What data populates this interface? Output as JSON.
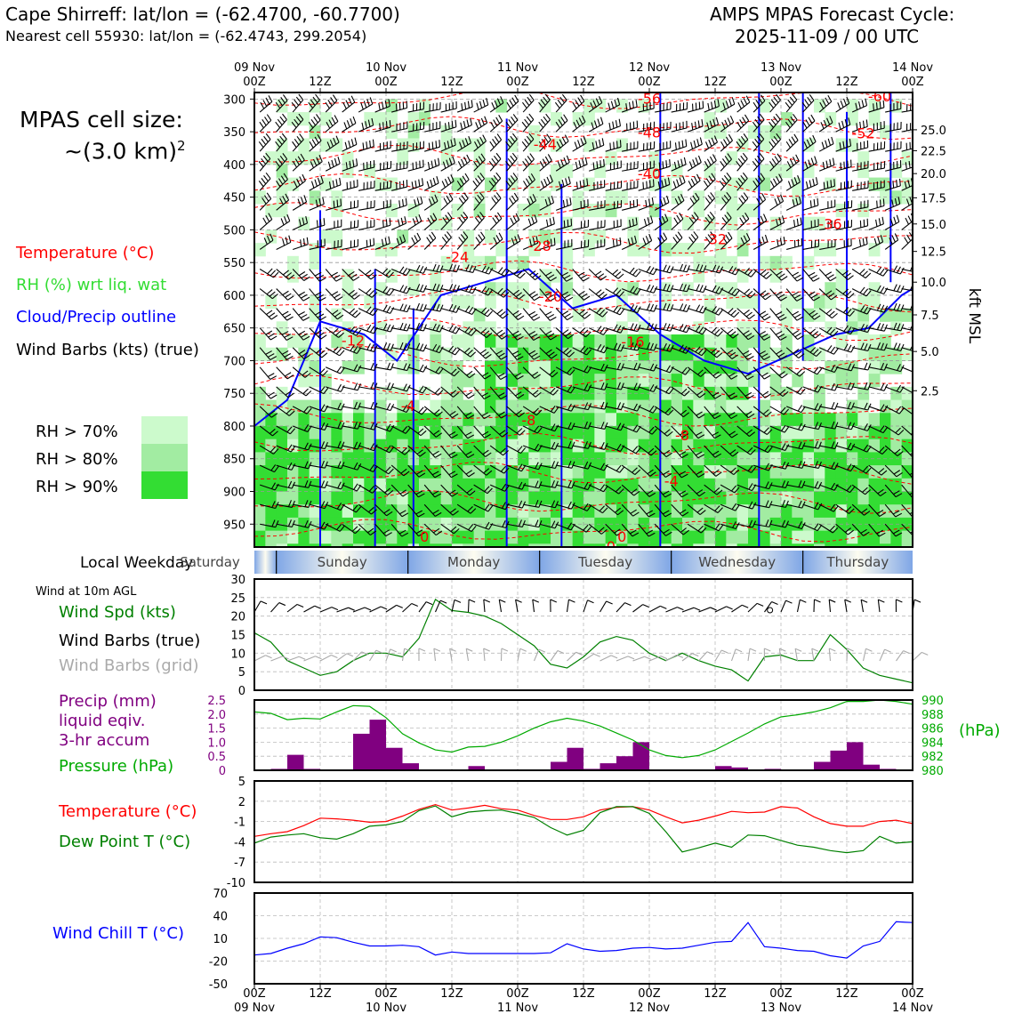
{
  "header": {
    "title_left": "Cape Shirreff: lat/lon = (-62.4700, -60.7700)",
    "subtitle_left": "Nearest cell 55930: lat/lon = (-62.4743, 299.2054)",
    "title_right_1": "AMPS MPAS Forecast Cycle:",
    "title_right_2": "2025-11-09 / 00 UTC"
  },
  "cell_size": {
    "line1": "MPAS cell size:",
    "line2": "~(3.0 km)",
    "sup": "2"
  },
  "legend": {
    "temperature": {
      "label": "Temperature (°C)",
      "color": "#ff0000"
    },
    "rh": {
      "label": "RH (%) wrt liq. wat",
      "color": "#33dd33"
    },
    "cloud": {
      "label": "Cloud/Precip outline",
      "color": "#0000ff"
    },
    "wind": {
      "label": "Wind Barbs (kts) (true)",
      "color": "#000000"
    }
  },
  "rh_key": [
    {
      "label": "RH > 70%",
      "color": "#ccfacc"
    },
    {
      "label": "RH > 80%",
      "color": "#a2eca2"
    },
    {
      "label": "RH > 90%",
      "color": "#33dd33"
    }
  ],
  "time_axis": {
    "ticks": [
      {
        "t": 0,
        "hour": "00Z",
        "day": "09 Nov"
      },
      {
        "t": 12,
        "hour": "12Z",
        "day": ""
      },
      {
        "t": 24,
        "hour": "00Z",
        "day": "10 Nov"
      },
      {
        "t": 36,
        "hour": "12Z",
        "day": ""
      },
      {
        "t": 48,
        "hour": "00Z",
        "day": "11 Nov"
      },
      {
        "t": 60,
        "hour": "12Z",
        "day": ""
      },
      {
        "t": 72,
        "hour": "00Z",
        "day": "12 Nov"
      },
      {
        "t": 84,
        "hour": "12Z",
        "day": ""
      },
      {
        "t": 96,
        "hour": "00Z",
        "day": "13 Nov"
      },
      {
        "t": 108,
        "hour": "12Z",
        "day": ""
      },
      {
        "t": 120,
        "hour": "00Z",
        "day": "14 Nov"
      }
    ]
  },
  "weekday_strip": {
    "label": "Local Weekday",
    "days": [
      {
        "name": "Saturday",
        "t0": -4,
        "t1": 4
      },
      {
        "name": "Sunday",
        "t0": 4,
        "t1": 28
      },
      {
        "name": "Monday",
        "t0": 28,
        "t1": 52
      },
      {
        "name": "Tuesday",
        "t0": 52,
        "t1": 76
      },
      {
        "name": "Wednesday",
        "t0": 76,
        "t1": 100
      },
      {
        "name": "Thursday",
        "t0": 100,
        "t1": 124
      }
    ]
  },
  "chart_data": [
    {
      "type": "heatmap",
      "name": "cross_section",
      "y_left_label": "",
      "pressure_ticks": [
        300,
        350,
        400,
        450,
        500,
        550,
        600,
        650,
        700,
        750,
        800,
        850,
        900,
        950
      ],
      "ylim_hpa": [
        290,
        985
      ],
      "right_axis_label": "kft MSL",
      "kft_ticks": [
        {
          "v": "25.0",
          "p": 347
        },
        {
          "v": "22.5",
          "p": 379
        },
        {
          "v": "20.0",
          "p": 414
        },
        {
          "v": "17.5",
          "p": 451
        },
        {
          "v": "15.0",
          "p": 491
        },
        {
          "v": "12.5",
          "p": 533
        },
        {
          "v": "10.0",
          "p": 580
        },
        {
          "v": "7.5",
          "p": 630
        },
        {
          "v": "5.0",
          "p": 686
        },
        {
          "v": "2.5",
          "p": 746
        }
      ],
      "temperature_contour_labels": [
        {
          "text": "-56",
          "t": 72,
          "p": 300
        },
        {
          "text": "-60",
          "t": 114,
          "p": 297
        },
        {
          "text": "-52",
          "t": 111,
          "p": 353
        },
        {
          "text": "-48",
          "t": 72,
          "p": 352
        },
        {
          "text": "-44",
          "t": 53,
          "p": 370
        },
        {
          "text": "-40",
          "t": 72,
          "p": 415
        },
        {
          "text": "-36",
          "t": 105,
          "p": 492
        },
        {
          "text": "-32",
          "t": 84,
          "p": 515
        },
        {
          "text": "-28",
          "t": 52,
          "p": 525
        },
        {
          "text": "-24",
          "t": 37,
          "p": 542
        },
        {
          "text": "-20",
          "t": 54,
          "p": 603
        },
        {
          "text": "-16",
          "t": 69,
          "p": 672
        },
        {
          "text": "-12",
          "t": 18,
          "p": 670
        },
        {
          "text": "-8",
          "t": 50,
          "p": 792
        },
        {
          "text": "-8",
          "t": 78,
          "p": 815
        },
        {
          "text": "-4",
          "t": 28,
          "p": 770
        },
        {
          "text": "-4",
          "t": 76,
          "p": 885
        },
        {
          "text": "0",
          "t": 31,
          "p": 970
        },
        {
          "text": "0",
          "t": 67,
          "p": 970
        },
        {
          "text": "0",
          "t": 65,
          "p": 985
        }
      ]
    },
    {
      "type": "line",
      "name": "wind_10m",
      "title": "Wind at 10m AGL",
      "ylabel_1": "Wind Spd (kts)",
      "ylabel_2": "Wind Barbs (true)",
      "ylabel_3": "Wind Barbs (grid)",
      "ylim": [
        0,
        30
      ],
      "yticks": [
        0,
        5,
        10,
        15,
        20,
        25,
        30
      ],
      "x": [
        0,
        3,
        6,
        9,
        12,
        15,
        18,
        21,
        24,
        27,
        30,
        33,
        36,
        39,
        42,
        45,
        48,
        51,
        54,
        57,
        60,
        63,
        66,
        69,
        72,
        75,
        78,
        81,
        84,
        87,
        90,
        93,
        96,
        99,
        102,
        105,
        108,
        111,
        114,
        117,
        120
      ],
      "series": [
        {
          "color": "#008000",
          "values": [
            15.5,
            13,
            8,
            6,
            4,
            5,
            8,
            10,
            10,
            9,
            14,
            24.5,
            21.5,
            21,
            20,
            18,
            15,
            12,
            7,
            6,
            9,
            13,
            14.5,
            13.5,
            10,
            8,
            10,
            8,
            6.5,
            5.5,
            2.5,
            9,
            9.5,
            8,
            8,
            15,
            11,
            6,
            4,
            3,
            2
          ]
        }
      ],
      "barb_note": "o"
    },
    {
      "type": "bar",
      "name": "precip_pressure",
      "ylabel_1": "Precip (mm)",
      "ylabel_2": "liquid eqiv.",
      "ylabel_3": "3-hr accum",
      "ylabel_4": "Pressure (hPa)",
      "right_axis_label": "(hPa)",
      "ylim_precip": [
        0,
        2.5
      ],
      "yticks_precip": [
        "0",
        "0.5",
        "1.0",
        "1.5",
        "2.0",
        "2.5"
      ],
      "ylim_pressure": [
        980,
        990
      ],
      "yticks_pressure": [
        980,
        982,
        984,
        986,
        988,
        990
      ],
      "precip_x": [
        3,
        6,
        9,
        12,
        15,
        18,
        21,
        24,
        27,
        30,
        33,
        36,
        39,
        42,
        45,
        48,
        51,
        54,
        57,
        60,
        63,
        66,
        69,
        72,
        75,
        78,
        81,
        84,
        87,
        90,
        93,
        96,
        99,
        102,
        105,
        108,
        111,
        114,
        117,
        120
      ],
      "precip_values": [
        0,
        0.05,
        0.55,
        0.05,
        0,
        0,
        1.3,
        1.8,
        0.8,
        0.25,
        0,
        0,
        0,
        0.15,
        0,
        0,
        0,
        0,
        0.3,
        0.8,
        0.05,
        0.25,
        0.5,
        1.0,
        0,
        0,
        0,
        0,
        0.15,
        0.1,
        0,
        0.05,
        0,
        0,
        0.3,
        0.7,
        1.0,
        0.2,
        0.05,
        0
      ],
      "pressure_x": [
        0,
        3,
        6,
        9,
        12,
        15,
        18,
        21,
        24,
        27,
        30,
        33,
        36,
        39,
        42,
        45,
        48,
        51,
        54,
        57,
        60,
        63,
        66,
        69,
        72,
        75,
        78,
        81,
        84,
        87,
        90,
        93,
        96,
        99,
        102,
        105,
        108,
        111,
        114,
        117,
        120
      ],
      "pressure_values": [
        988.3,
        988.1,
        987.2,
        987.4,
        987.3,
        988.3,
        989.2,
        989.1,
        987.5,
        985.2,
        983.9,
        982.9,
        982.6,
        983.3,
        983.4,
        984.0,
        984.9,
        986.0,
        986.9,
        987.4,
        987.0,
        986.3,
        985.3,
        984.3,
        982.9,
        982.1,
        981.8,
        982.1,
        982.9,
        984.1,
        985.3,
        986.6,
        987.6,
        987.9,
        988.3,
        988.9,
        989.8,
        989.8,
        990.0,
        989.8,
        989.4
      ],
      "precip_color": "#800080",
      "pressure_color": "#00aa00"
    },
    {
      "type": "line",
      "name": "temp_dewpoint",
      "ylabel_1": "Temperature (°C)",
      "ylabel_2": "Dew Point T (°C)",
      "ylim": [
        -10,
        5
      ],
      "yticks": [
        -10,
        -7,
        -4,
        -1,
        2,
        5
      ],
      "x": [
        0,
        3,
        6,
        9,
        12,
        15,
        18,
        21,
        24,
        27,
        30,
        33,
        36,
        39,
        42,
        45,
        48,
        51,
        54,
        57,
        60,
        63,
        66,
        69,
        72,
        75,
        78,
        81,
        84,
        87,
        90,
        93,
        96,
        99,
        102,
        105,
        108,
        111,
        114,
        117,
        120
      ],
      "series": [
        {
          "name": "Temperature",
          "color": "#ff0000",
          "values": [
            -3.2,
            -2.8,
            -2.5,
            -1.6,
            -0.5,
            -0.6,
            -0.8,
            -1.1,
            -1.0,
            -0.2,
            0.8,
            1.5,
            0.7,
            1.0,
            1.4,
            0.9,
            0.7,
            -0.1,
            -0.7,
            -0.7,
            -0.3,
            0.7,
            1.1,
            1.2,
            0.7,
            -0.3,
            -1.2,
            -0.8,
            -0.2,
            0.5,
            0.3,
            0.4,
            1.2,
            1.0,
            -0.3,
            -1.3,
            -1.7,
            -1.7,
            -1.0,
            -0.8,
            -1.3
          ]
        },
        {
          "name": "Dew Point",
          "color": "#008000",
          "values": [
            -4.2,
            -3.3,
            -3.0,
            -2.8,
            -3.4,
            -3.6,
            -2.8,
            -1.7,
            -1.5,
            -1.0,
            0.6,
            1.3,
            -0.3,
            0.4,
            0.6,
            0.7,
            0.2,
            -0.4,
            -1.9,
            -3.0,
            -2.3,
            0.3,
            1.2,
            1.2,
            0.2,
            -2.5,
            -5.5,
            -4.9,
            -4.2,
            -4.8,
            -3.0,
            -3.1,
            -3.8,
            -4.5,
            -4.8,
            -5.3,
            -5.6,
            -5.3,
            -3.2,
            -4.2,
            -4.0
          ]
        }
      ]
    },
    {
      "type": "line",
      "name": "wind_chill",
      "ylabel_1": "Wind Chill T (°C)",
      "ylim": [
        -50,
        70
      ],
      "yticks": [
        -50,
        -20,
        10,
        40,
        70
      ],
      "x": [
        0,
        3,
        6,
        9,
        12,
        15,
        18,
        21,
        24,
        27,
        30,
        33,
        36,
        39,
        42,
        45,
        48,
        51,
        54,
        57,
        60,
        63,
        66,
        69,
        72,
        75,
        78,
        81,
        84,
        87,
        90,
        93,
        96,
        99,
        102,
        105,
        108,
        111,
        114,
        117,
        120
      ],
      "series": [
        {
          "color": "#0000ff",
          "values": [
            -12,
            -10,
            -3,
            3,
            12,
            11,
            5,
            0,
            0,
            1,
            -1,
            -12,
            -8,
            -10,
            -10,
            -10,
            -10,
            -10,
            -9,
            3,
            -4,
            -7,
            -6,
            -3,
            -2,
            -4,
            -3,
            1,
            5,
            6,
            31,
            -1,
            -3,
            -6,
            -7,
            -13,
            -16,
            0,
            6,
            32,
            31
          ]
        }
      ]
    }
  ]
}
